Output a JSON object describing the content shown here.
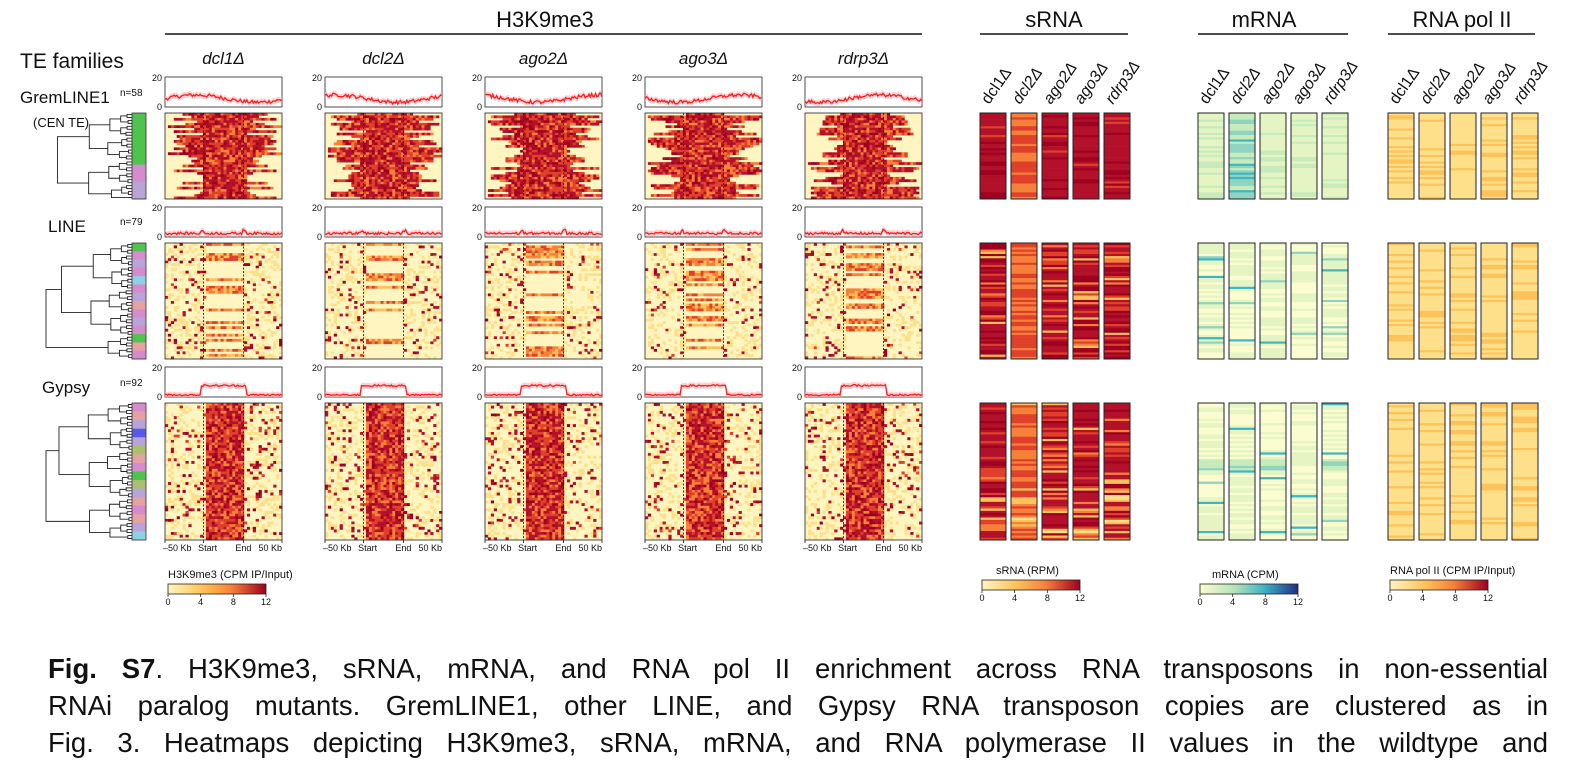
{
  "sections": {
    "h3k9me3": "H3K9me3",
    "srna": "sRNA",
    "mrna": "mRNA",
    "rnapol": "RNA pol II"
  },
  "te_families_label": "TE families",
  "mutants_italic": [
    "dcl1Δ",
    "dcl2Δ",
    "ago2Δ",
    "ago3Δ",
    "rdrp3Δ"
  ],
  "families": [
    {
      "name": "GremLINE1",
      "subtitle": "(CEN TE)",
      "n": "n=58"
    },
    {
      "name": "LINE",
      "subtitle": "",
      "n": "n=79"
    },
    {
      "name": "Gypsy",
      "subtitle": "",
      "n": "n=92"
    }
  ],
  "profile_ticks": [
    "20",
    "0"
  ],
  "x_ticks": [
    "–50 Kb",
    "Start",
    "End",
    "50 Kb"
  ],
  "legends": {
    "h3k9me3": {
      "title": "H3K9me3 (CPM IP/Input)",
      "ticks": [
        "0",
        "4",
        "8",
        "12"
      ]
    },
    "srna": {
      "title": "sRNA (RPM)",
      "ticks": [
        "0",
        "4",
        "8",
        "12"
      ]
    },
    "mrna": {
      "title": "mRNA (CPM)",
      "ticks": [
        "0",
        "4",
        "8",
        "12"
      ]
    },
    "rnapol": {
      "title": "RNA pol II (CPM IP/Input)",
      "ticks": [
        "0",
        "4",
        "8",
        "12"
      ]
    }
  },
  "colors": {
    "heat_low": "#fff5c0",
    "heat_mid": "#f6813a",
    "heat_high": "#9e0020",
    "mrna_low": "#fbfdd0",
    "mrna_mid": "#3fb5c4",
    "mrna_high": "#1e2f82",
    "profile_line": "#ff1a1a",
    "cluster_colors": [
      "#4fc24f",
      "#d58ccc",
      "#b8a4d6",
      "#5a5ae6",
      "#a8c070",
      "#e5a2a2",
      "#8ed0e6"
    ]
  },
  "caption": {
    "label": "Fig. S7",
    "line1": ". H3K9me3, sRNA, mRNA, and RNA pol II enrichment across RNA transposons in non-essential",
    "line2": "RNAi paralog mutants. GremLINE1, other LINE, and Gypsy RNA transposon copies are clustered as in",
    "line3": "Fig. 3. Heatmaps depicting H3K9me3, sRNA, mRNA, and RNA polymerase II values in the wildtype and"
  }
}
